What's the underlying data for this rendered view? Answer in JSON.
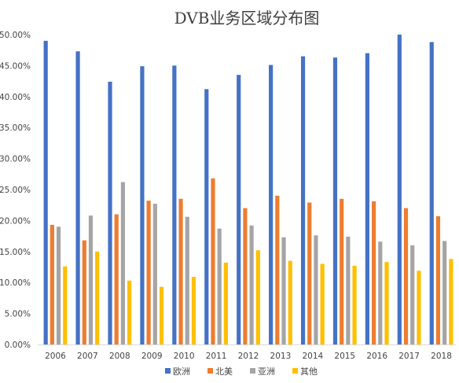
{
  "chart_data": {
    "type": "bar",
    "title": "DVB业务区域分布图",
    "xlabel": "",
    "ylabel": "",
    "ylim": [
      0,
      0.5
    ],
    "y_tick_format": "percent_2dp",
    "y_ticks": [
      "0.00%",
      "5.00%",
      "10.00%",
      "15.00%",
      "20.00%",
      "25.00%",
      "30.00%",
      "35.00%",
      "40.00%",
      "45.00%",
      "50.00%"
    ],
    "grid": false,
    "legend_position": "bottom",
    "categories": [
      "2006",
      "2007",
      "2008",
      "2009",
      "2010",
      "2011",
      "2012",
      "2013",
      "2014",
      "2015",
      "2016",
      "2017",
      "2018"
    ],
    "series": [
      {
        "name": "欧洲",
        "color": "#4472C4",
        "values": [
          0.49,
          0.473,
          0.424,
          0.449,
          0.45,
          0.412,
          0.435,
          0.451,
          0.465,
          0.463,
          0.47,
          0.5,
          0.488
        ]
      },
      {
        "name": "北美",
        "color": "#ED7D31",
        "values": [
          0.193,
          0.168,
          0.21,
          0.232,
          0.235,
          0.268,
          0.22,
          0.24,
          0.229,
          0.235,
          0.231,
          0.22,
          0.207
        ]
      },
      {
        "name": "亚洲",
        "color": "#A5A5A5",
        "values": [
          0.19,
          0.208,
          0.262,
          0.227,
          0.206,
          0.187,
          0.192,
          0.173,
          0.176,
          0.174,
          0.166,
          0.16,
          0.167
        ]
      },
      {
        "name": "其他",
        "color": "#FFC000",
        "values": [
          0.126,
          0.15,
          0.103,
          0.093,
          0.109,
          0.132,
          0.152,
          0.135,
          0.13,
          0.127,
          0.133,
          0.119,
          0.138
        ]
      }
    ]
  }
}
